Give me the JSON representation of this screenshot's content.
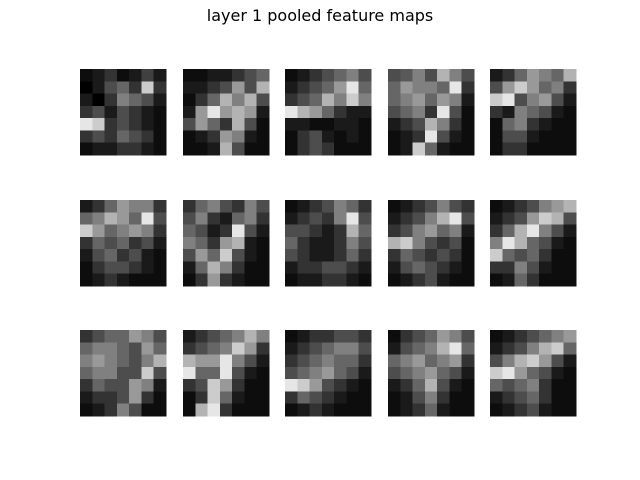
{
  "title": "layer 1 pooled feature maps",
  "chart_data": {
    "type": "heatmap",
    "title": "layer 1 pooled feature maps",
    "rows": 3,
    "cols": 5,
    "colormap": "gray",
    "value_range": [
      0,
      1
    ],
    "axes_visible": false,
    "maps": [
      [
        [
          0.05,
          0.1,
          0.2,
          0.05,
          0.1,
          0.25,
          0.1
        ],
        [
          0.0,
          0.1,
          0.3,
          0.4,
          0.2,
          0.8,
          0.2
        ],
        [
          0.1,
          0.0,
          0.2,
          0.5,
          0.4,
          0.3,
          0.1
        ],
        [
          0.2,
          0.3,
          0.1,
          0.3,
          0.2,
          0.1,
          0.05
        ],
        [
          0.9,
          0.8,
          0.2,
          0.3,
          0.2,
          0.1,
          0.05
        ],
        [
          0.2,
          0.3,
          0.2,
          0.4,
          0.3,
          0.2,
          0.05
        ],
        [
          0.05,
          0.1,
          0.1,
          0.2,
          0.2,
          0.1,
          0.05
        ]
      ],
      [
        [
          0.05,
          0.05,
          0.1,
          0.1,
          0.2,
          0.3,
          0.4
        ],
        [
          0.1,
          0.1,
          0.2,
          0.3,
          0.6,
          0.3,
          0.7
        ],
        [
          0.05,
          0.2,
          0.4,
          0.7,
          0.5,
          0.7,
          0.3
        ],
        [
          0.1,
          0.6,
          0.9,
          0.6,
          0.7,
          0.6,
          0.1
        ],
        [
          0.3,
          0.6,
          0.4,
          0.2,
          0.7,
          0.3,
          0.05
        ],
        [
          0.05,
          0.1,
          0.2,
          0.6,
          0.5,
          0.1,
          0.05
        ],
        [
          0.05,
          0.05,
          0.1,
          0.7,
          0.3,
          0.05,
          0.05
        ]
      ],
      [
        [
          0.05,
          0.1,
          0.2,
          0.3,
          0.4,
          0.5,
          0.3
        ],
        [
          0.1,
          0.2,
          0.3,
          0.4,
          0.6,
          0.9,
          0.4
        ],
        [
          0.2,
          0.3,
          0.4,
          0.7,
          0.5,
          0.8,
          0.5
        ],
        [
          0.9,
          0.7,
          0.6,
          0.4,
          0.2,
          0.1,
          0.1
        ],
        [
          0.1,
          0.1,
          0.05,
          0.05,
          0.1,
          0.1,
          0.05
        ],
        [
          0.05,
          0.2,
          0.3,
          0.1,
          0.05,
          0.1,
          0.05
        ],
        [
          0.05,
          0.2,
          0.3,
          0.2,
          0.05,
          0.05,
          0.05
        ]
      ],
      [
        [
          0.3,
          0.35,
          0.5,
          0.3,
          0.7,
          0.5,
          0.3
        ],
        [
          0.4,
          0.6,
          0.5,
          0.5,
          0.4,
          0.9,
          0.2
        ],
        [
          0.4,
          0.5,
          0.6,
          0.4,
          0.6,
          0.5,
          0.1
        ],
        [
          0.3,
          0.4,
          0.5,
          0.2,
          0.9,
          0.3,
          0.05
        ],
        [
          0.1,
          0.2,
          0.3,
          0.7,
          0.5,
          0.2,
          0.05
        ],
        [
          0.05,
          0.1,
          0.2,
          0.9,
          0.3,
          0.1,
          0.05
        ],
        [
          0.05,
          0.1,
          0.8,
          0.4,
          0.1,
          0.05,
          0.05
        ]
      ],
      [
        [
          0.1,
          0.2,
          0.4,
          0.6,
          0.5,
          0.4,
          0.7
        ],
        [
          0.3,
          0.6,
          0.8,
          0.6,
          0.4,
          0.5,
          0.2
        ],
        [
          0.8,
          0.9,
          0.3,
          0.5,
          0.6,
          0.3,
          0.1
        ],
        [
          0.2,
          0.1,
          0.5,
          0.4,
          0.3,
          0.1,
          0.05
        ],
        [
          0.05,
          0.4,
          0.5,
          0.2,
          0.1,
          0.05,
          0.05
        ],
        [
          0.05,
          0.3,
          0.3,
          0.1,
          0.05,
          0.05,
          0.05
        ],
        [
          0.05,
          0.2,
          0.2,
          0.05,
          0.05,
          0.05,
          0.05
        ]
      ],
      [
        [
          0.1,
          0.2,
          0.4,
          0.6,
          0.5,
          0.5,
          0.2
        ],
        [
          0.4,
          0.5,
          0.7,
          0.6,
          0.4,
          0.9,
          0.3
        ],
        [
          0.8,
          0.6,
          0.4,
          0.5,
          0.6,
          0.5,
          0.2
        ],
        [
          0.2,
          0.4,
          0.3,
          0.4,
          0.2,
          0.3,
          0.1
        ],
        [
          0.1,
          0.3,
          0.4,
          0.2,
          0.3,
          0.1,
          0.05
        ],
        [
          0.05,
          0.2,
          0.3,
          0.3,
          0.2,
          0.1,
          0.05
        ],
        [
          0.05,
          0.1,
          0.2,
          0.1,
          0.05,
          0.05,
          0.05
        ]
      ],
      [
        [
          0.2,
          0.4,
          0.5,
          0.3,
          0.2,
          0.5,
          0.3
        ],
        [
          0.3,
          0.5,
          0.2,
          0.1,
          0.4,
          0.5,
          0.2
        ],
        [
          0.4,
          0.3,
          0.1,
          0.2,
          0.9,
          0.3,
          0.1
        ],
        [
          0.5,
          0.4,
          0.2,
          0.6,
          0.7,
          0.1,
          0.05
        ],
        [
          0.3,
          0.6,
          0.4,
          0.8,
          0.3,
          0.1,
          0.05
        ],
        [
          0.1,
          0.4,
          0.7,
          0.5,
          0.2,
          0.05,
          0.05
        ],
        [
          0.05,
          0.2,
          0.6,
          0.2,
          0.1,
          0.05,
          0.05
        ]
      ],
      [
        [
          0.05,
          0.1,
          0.2,
          0.3,
          0.5,
          0.4,
          0.2
        ],
        [
          0.1,
          0.2,
          0.3,
          0.2,
          0.5,
          0.9,
          0.3
        ],
        [
          0.3,
          0.3,
          0.2,
          0.1,
          0.2,
          0.7,
          0.4
        ],
        [
          0.4,
          0.2,
          0.1,
          0.1,
          0.2,
          0.5,
          0.3
        ],
        [
          0.3,
          0.2,
          0.1,
          0.1,
          0.2,
          0.4,
          0.2
        ],
        [
          0.1,
          0.2,
          0.2,
          0.3,
          0.3,
          0.2,
          0.1
        ],
        [
          0.05,
          0.1,
          0.1,
          0.2,
          0.2,
          0.1,
          0.05
        ]
      ],
      [
        [
          0.05,
          0.1,
          0.2,
          0.3,
          0.5,
          0.3,
          0.2
        ],
        [
          0.1,
          0.2,
          0.3,
          0.5,
          0.7,
          0.9,
          0.3
        ],
        [
          0.2,
          0.3,
          0.5,
          0.6,
          0.4,
          0.5,
          0.1
        ],
        [
          0.7,
          0.8,
          0.5,
          0.3,
          0.2,
          0.3,
          0.05
        ],
        [
          0.2,
          0.4,
          0.3,
          0.2,
          0.3,
          0.2,
          0.05
        ],
        [
          0.1,
          0.3,
          0.4,
          0.3,
          0.2,
          0.1,
          0.05
        ],
        [
          0.05,
          0.1,
          0.2,
          0.3,
          0.1,
          0.05,
          0.05
        ]
      ],
      [
        [
          0.05,
          0.1,
          0.2,
          0.3,
          0.5,
          0.6,
          0.7
        ],
        [
          0.1,
          0.2,
          0.3,
          0.6,
          0.8,
          0.7,
          0.3
        ],
        [
          0.2,
          0.4,
          0.7,
          0.9,
          0.5,
          0.3,
          0.1
        ],
        [
          0.5,
          0.9,
          0.7,
          0.4,
          0.3,
          0.1,
          0.05
        ],
        [
          0.8,
          0.4,
          0.3,
          0.4,
          0.2,
          0.05,
          0.05
        ],
        [
          0.2,
          0.2,
          0.5,
          0.3,
          0.1,
          0.05,
          0.05
        ],
        [
          0.05,
          0.1,
          0.4,
          0.2,
          0.05,
          0.05,
          0.05
        ]
      ],
      [
        [
          0.2,
          0.3,
          0.4,
          0.4,
          0.6,
          0.5,
          0.3
        ],
        [
          0.4,
          0.5,
          0.5,
          0.4,
          0.3,
          0.6,
          0.4
        ],
        [
          0.5,
          0.6,
          0.5,
          0.4,
          0.3,
          0.5,
          0.7
        ],
        [
          0.4,
          0.5,
          0.5,
          0.3,
          0.3,
          0.8,
          0.3
        ],
        [
          0.2,
          0.4,
          0.3,
          0.3,
          0.6,
          0.5,
          0.1
        ],
        [
          0.1,
          0.2,
          0.2,
          0.3,
          0.6,
          0.2,
          0.05
        ],
        [
          0.05,
          0.1,
          0.2,
          0.5,
          0.3,
          0.05,
          0.05
        ]
      ],
      [
        [
          0.1,
          0.2,
          0.3,
          0.4,
          0.5,
          0.7,
          0.5
        ],
        [
          0.2,
          0.3,
          0.4,
          0.5,
          0.8,
          0.6,
          0.2
        ],
        [
          0.7,
          0.6,
          0.6,
          0.9,
          0.5,
          0.3,
          0.1
        ],
        [
          0.9,
          0.4,
          0.4,
          0.9,
          0.3,
          0.1,
          0.05
        ],
        [
          0.2,
          0.3,
          0.8,
          0.6,
          0.2,
          0.05,
          0.05
        ],
        [
          0.05,
          0.2,
          0.8,
          0.4,
          0.1,
          0.05,
          0.05
        ],
        [
          0.05,
          0.7,
          0.9,
          0.2,
          0.05,
          0.05,
          0.05
        ]
      ],
      [
        [
          0.05,
          0.1,
          0.2,
          0.2,
          0.3,
          0.3,
          0.2
        ],
        [
          0.1,
          0.2,
          0.3,
          0.4,
          0.5,
          0.5,
          0.3
        ],
        [
          0.2,
          0.3,
          0.4,
          0.5,
          0.4,
          0.4,
          0.2
        ],
        [
          0.3,
          0.4,
          0.5,
          0.6,
          0.4,
          0.3,
          0.1
        ],
        [
          0.9,
          0.8,
          0.6,
          0.3,
          0.2,
          0.1,
          0.05
        ],
        [
          0.2,
          0.4,
          0.3,
          0.2,
          0.1,
          0.05,
          0.05
        ],
        [
          0.05,
          0.1,
          0.2,
          0.1,
          0.05,
          0.05,
          0.05
        ]
      ],
      [
        [
          0.05,
          0.2,
          0.3,
          0.4,
          0.6,
          0.5,
          0.3
        ],
        [
          0.1,
          0.3,
          0.4,
          0.5,
          0.7,
          0.9,
          0.4
        ],
        [
          0.4,
          0.5,
          0.6,
          0.4,
          0.5,
          0.6,
          0.2
        ],
        [
          0.3,
          0.4,
          0.5,
          0.6,
          0.4,
          0.3,
          0.1
        ],
        [
          0.1,
          0.2,
          0.4,
          0.7,
          0.3,
          0.1,
          0.05
        ],
        [
          0.05,
          0.1,
          0.3,
          0.5,
          0.2,
          0.05,
          0.05
        ],
        [
          0.05,
          0.1,
          0.2,
          0.4,
          0.1,
          0.05,
          0.05
        ]
      ],
      [
        [
          0.05,
          0.1,
          0.2,
          0.3,
          0.4,
          0.5,
          0.6
        ],
        [
          0.1,
          0.2,
          0.3,
          0.5,
          0.7,
          0.8,
          0.4
        ],
        [
          0.3,
          0.5,
          0.7,
          0.8,
          0.6,
          0.3,
          0.1
        ],
        [
          0.8,
          0.9,
          0.6,
          0.4,
          0.3,
          0.1,
          0.05
        ],
        [
          0.4,
          0.3,
          0.4,
          0.5,
          0.2,
          0.05,
          0.05
        ],
        [
          0.1,
          0.2,
          0.3,
          0.4,
          0.2,
          0.05,
          0.05
        ],
        [
          0.05,
          0.1,
          0.2,
          0.3,
          0.1,
          0.05,
          0.05
        ]
      ]
    ]
  }
}
